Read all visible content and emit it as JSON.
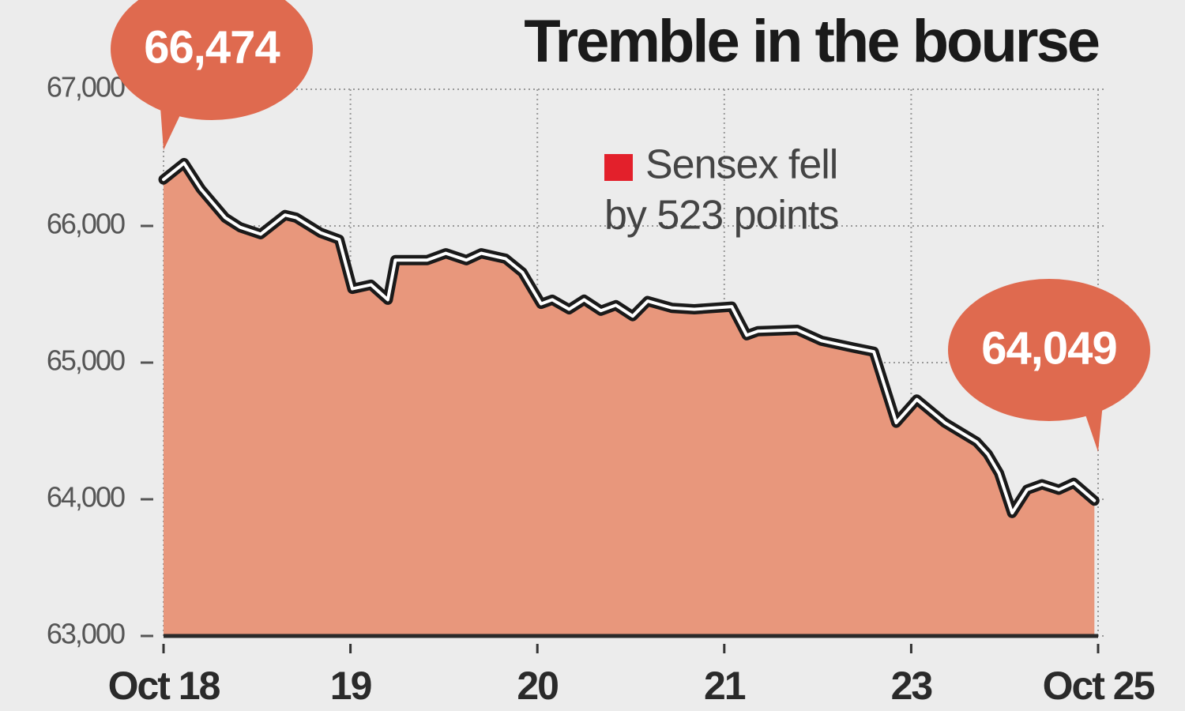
{
  "chart_data": {
    "type": "area",
    "title": "Tremble in the bourse",
    "x": [
      0,
      0.11,
      0.2,
      0.33,
      0.41,
      0.52,
      0.65,
      0.71,
      0.84,
      0.94,
      1.01,
      1.11,
      1.2,
      1.24,
      1.41,
      1.51,
      1.62,
      1.7,
      1.83,
      1.92,
      2.02,
      2.08,
      2.17,
      2.25,
      2.34,
      2.42,
      2.51,
      2.59,
      2.72,
      2.84,
      3.04,
      3.12,
      3.18,
      3.39,
      3.52,
      3.69,
      3.8,
      3.92,
      4.03,
      4.18,
      4.35,
      4.41,
      4.47,
      4.54,
      4.62,
      4.7,
      4.79,
      4.87,
      4.98
    ],
    "values": [
      66340,
      66460,
      66270,
      66060,
      65990,
      65940,
      66080,
      66060,
      65950,
      65900,
      65540,
      65570,
      65460,
      65750,
      65750,
      65800,
      65750,
      65800,
      65760,
      65660,
      65430,
      65460,
      65390,
      65460,
      65380,
      65420,
      65340,
      65450,
      65400,
      65390,
      65410,
      65200,
      65230,
      65240,
      65160,
      65110,
      65080,
      64560,
      64730,
      64560,
      64420,
      64330,
      64190,
      63900,
      64070,
      64110,
      64070,
      64120,
      63990
    ],
    "color": "#e8977c",
    "line_color": "#1a1a1a",
    "xlim": [
      0,
      5
    ],
    "xticks": [
      {
        "value": 0,
        "label": "Oct 18"
      },
      {
        "value": 1,
        "label": "19"
      },
      {
        "value": 2,
        "label": "20"
      },
      {
        "value": 3,
        "label": "21"
      },
      {
        "value": 4,
        "label": "23"
      },
      {
        "value": 5,
        "label": "Oct 25"
      }
    ],
    "ylim": [
      63000,
      67000
    ],
    "yticks": [
      {
        "value": 63000,
        "label": "63,000"
      },
      {
        "value": 64000,
        "label": "64,000"
      },
      {
        "value": 65000,
        "label": "65,000"
      },
      {
        "value": 66000,
        "label": "66,000"
      },
      {
        "value": 67000,
        "label": "67,000"
      }
    ],
    "grid": true,
    "annotations": [
      "66,474",
      "64,049"
    ],
    "annotation_color": "#df6a4f",
    "note": [
      "Sensex fell",
      "by 523 points"
    ],
    "note_marker_color": "#e3202b"
  }
}
